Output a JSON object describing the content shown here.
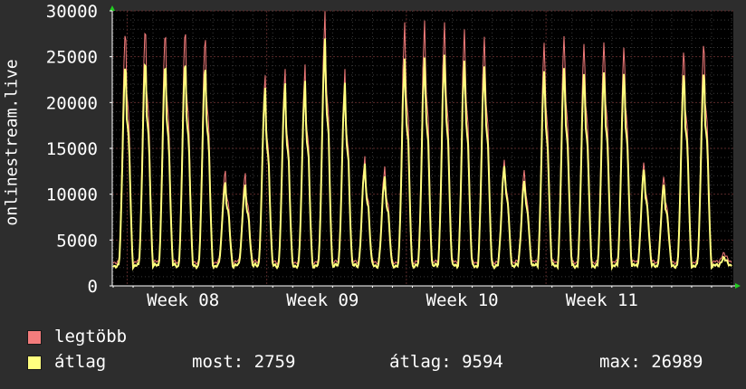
{
  "chart_data": {
    "type": "area",
    "ylabel": "onlinestream.live",
    "yticks": [
      "0",
      "5000",
      "10000",
      "15000",
      "20000",
      "25000",
      "30000"
    ],
    "ylim": [
      0,
      30000
    ],
    "xticks": [
      "Week 08",
      "Week 09",
      "Week 10",
      "Week 11"
    ],
    "days": 31,
    "grid": true,
    "daily_peaks_max": [
      29000,
      29200,
      28600,
      28900,
      28100,
      12900,
      12400,
      23300,
      24000,
      24400,
      30000,
      23500,
      14100,
      13200,
      29200,
      29400,
      29200,
      28600,
      28000,
      14300,
      13000,
      27300,
      28200,
      27500,
      27700,
      27000,
      13800,
      12300,
      26800,
      27600,
      3500
    ],
    "daily_peaks_avg": [
      25200,
      25500,
      25000,
      25300,
      24700,
      11600,
      11100,
      21900,
      22400,
      22600,
      27000,
      22000,
      13300,
      12100,
      25200,
      25300,
      25600,
      25100,
      24700,
      13600,
      11800,
      24100,
      24600,
      24100,
      24300,
      24000,
      13000,
      11400,
      24200,
      24300,
      3000
    ],
    "series": [
      {
        "name": "legtöbb",
        "color": "#f47c7c"
      },
      {
        "name": "átlag",
        "color": "#ffff7f"
      }
    ]
  },
  "legend": {
    "max_label": "legtöbb",
    "avg_label": "átlag",
    "stat_now": "most: 2759",
    "stat_avg": "átlag: 9594",
    "stat_max": "max: 26989"
  }
}
